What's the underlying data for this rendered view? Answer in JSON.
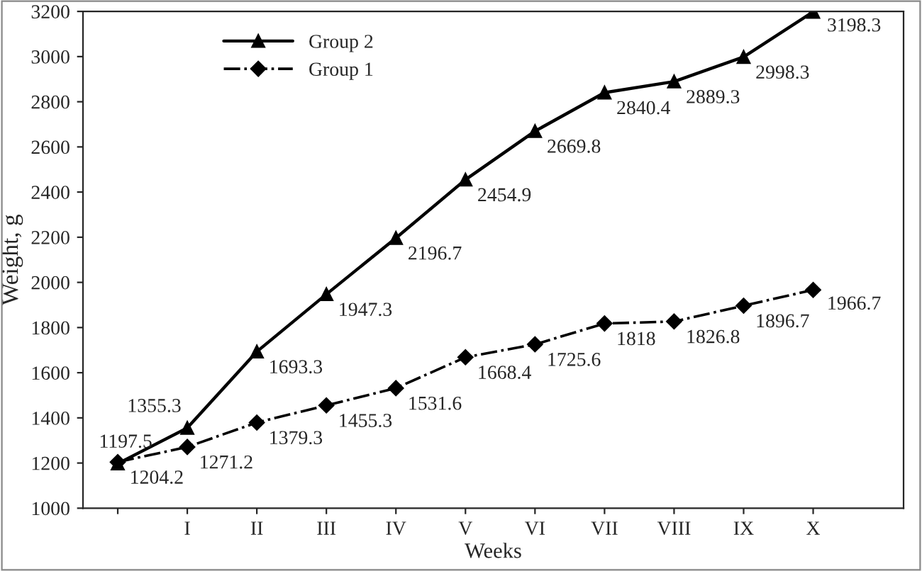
{
  "chart_data": {
    "type": "line",
    "xlabel": "Weeks",
    "ylabel": "Weight, g",
    "categories": [
      null,
      "I",
      "II",
      "III",
      "IV",
      "V",
      "VI",
      "VII",
      "VIII",
      "IX",
      "X"
    ],
    "series": [
      {
        "name": "Group 2",
        "color": "#000000",
        "marker": "triangle",
        "line_style": "solid",
        "values": [
          1197.5,
          1355.3,
          1693.3,
          1947.3,
          2196.7,
          2454.9,
          2669.8,
          2840.4,
          2889.3,
          2998.3,
          3198.3
        ]
      },
      {
        "name": "Group 1",
        "color": "#000000",
        "marker": "diamond",
        "line_style": "dashdot",
        "values": [
          1204.2,
          1271.2,
          1379.3,
          1455.3,
          1531.6,
          1668.4,
          1725.6,
          1818,
          1826.8,
          1896.7,
          1966.7
        ]
      }
    ],
    "ylim": [
      1000,
      3200
    ],
    "yticks": [
      1000,
      1200,
      1400,
      1600,
      1800,
      2000,
      2200,
      2400,
      2600,
      2800,
      3000,
      3200
    ],
    "data_labels": true,
    "legend": "top left",
    "grid": false
  }
}
